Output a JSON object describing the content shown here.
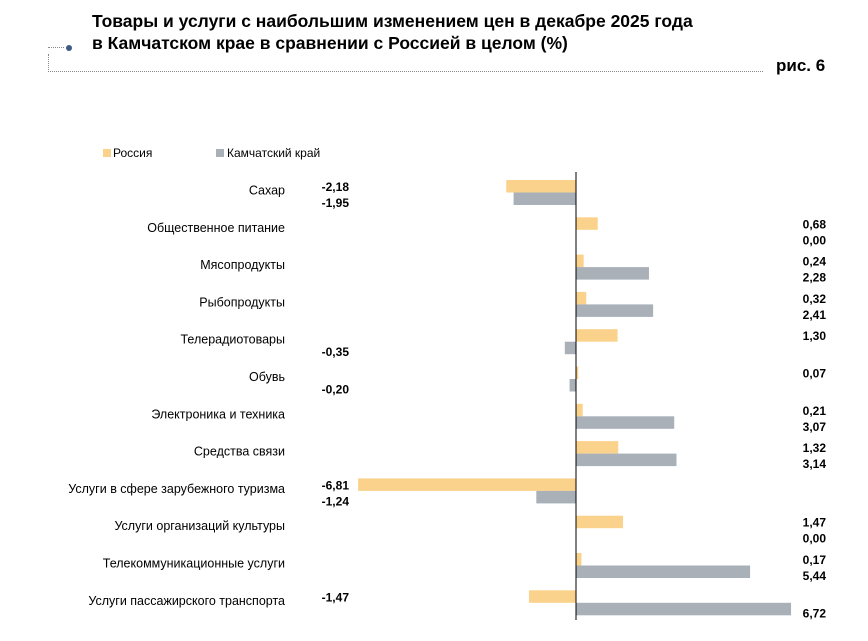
{
  "title": {
    "line1": "Товары и услуги с наибольшим изменением цен в декабре 2025 года",
    "line2": "в Камчатском крае в сравнении с Россией в целом (%)"
  },
  "figure_label": "рис. 6",
  "colors": {
    "russia": "#fbd28c",
    "kamchatka": "#a9b0b8",
    "axis": "#000000"
  },
  "chart_data": {
    "type": "bar",
    "orientation": "horizontal",
    "title": "Товары и услуги с наибольшим изменением цен в декабре 2025 года в Камчатском крае в сравнении с Россией в целом (%)",
    "legend_position": "top-left",
    "xlim": [
      -6.81,
      6.72
    ],
    "categories": [
      "Сахар",
      "Общественное питание",
      "Мясопродукты",
      "Рыбопродукты",
      "Телерадиотовары",
      "Обувь",
      "Электроника и техника",
      "Средства связи",
      "Услуги в сфере зарубежного туризма",
      "Услуги организаций культуры",
      "Телекоммуникационные услуги",
      "Услуги пассажирского транспорта"
    ],
    "series": [
      {
        "name": "Россия",
        "values": [
          -2.18,
          0.68,
          0.24,
          0.32,
          1.3,
          0.07,
          0.21,
          1.32,
          -6.81,
          1.47,
          0.17,
          -1.47
        ],
        "labels": [
          "-2,18",
          "0,68",
          "0,24",
          "0,32",
          "1,30",
          "0,07",
          "0,21",
          "1,32",
          "-6,81",
          "1,47",
          "0,17",
          "-1,47"
        ]
      },
      {
        "name": "Камчатский край",
        "values": [
          -1.95,
          0.0,
          2.28,
          2.41,
          -0.35,
          -0.2,
          3.07,
          3.14,
          -1.24,
          0.0,
          5.44,
          6.72
        ],
        "labels": [
          "-1,95",
          "0,00",
          "2,28",
          "2,41",
          "-0,35",
          "-0,20",
          "3,07",
          "3,14",
          "-1,24",
          "0,00",
          "5,44",
          "6,72"
        ]
      }
    ]
  }
}
